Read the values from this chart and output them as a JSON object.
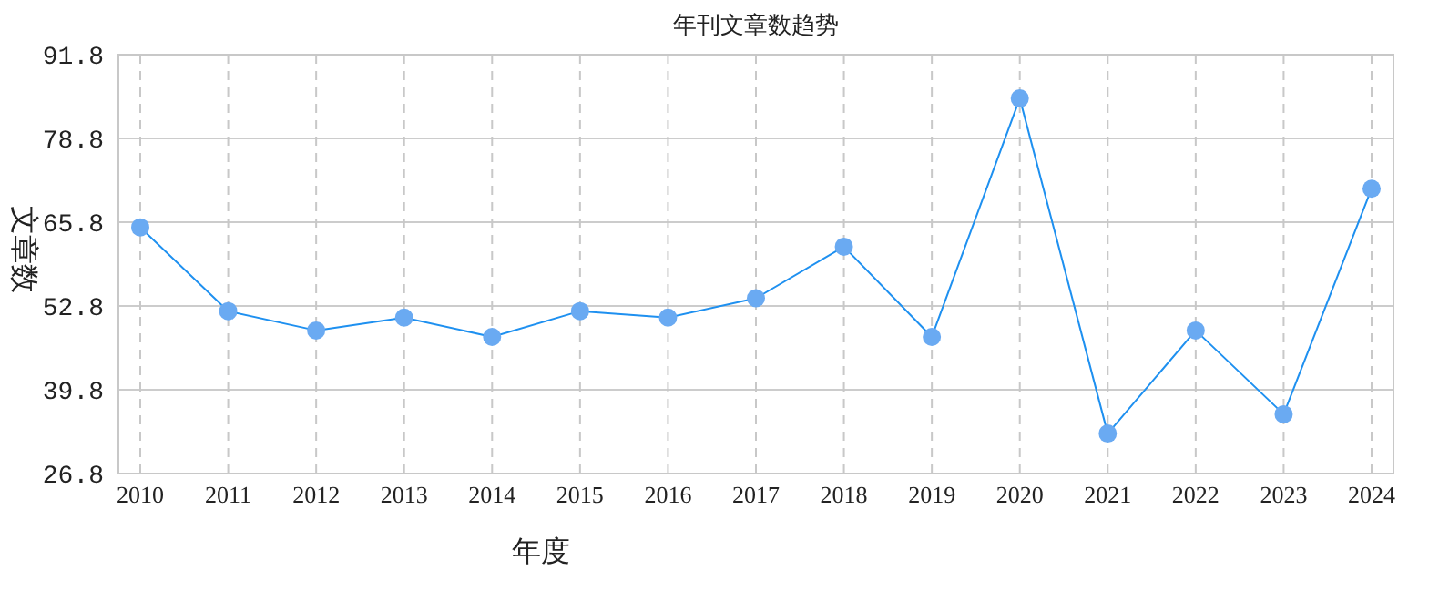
{
  "chart_data": {
    "type": "line",
    "title": "年刊文章数趋势",
    "xlabel": "年度",
    "ylabel": "文章数",
    "categories": [
      "2010",
      "2011",
      "2012",
      "2013",
      "2014",
      "2015",
      "2016",
      "2017",
      "2018",
      "2019",
      "2020",
      "2021",
      "2022",
      "2023",
      "2024"
    ],
    "series": [
      {
        "color": "#1e90f0",
        "values": [
          65,
          52,
          49,
          51,
          48,
          52,
          51,
          54,
          62,
          48,
          85,
          33,
          49,
          36,
          71
        ]
      }
    ],
    "ylim": [
      26.8,
      91.8
    ],
    "yticks": [
      26.8,
      39.8,
      52.8,
      65.8,
      78.8,
      91.8
    ],
    "grid": true,
    "marker": "circle",
    "line_style": "solid"
  }
}
